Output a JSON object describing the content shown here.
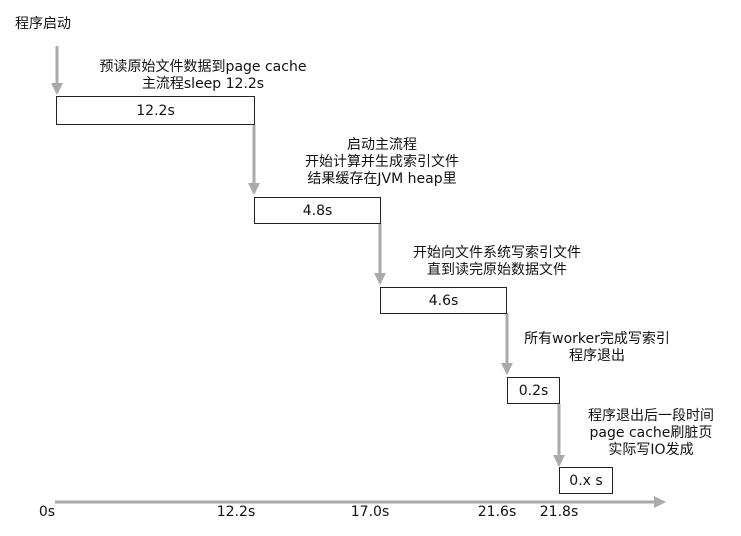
{
  "start_label": "程序启动",
  "steps": [
    {
      "note_lines": [
        "预读原始文件数据到page cache",
        "主流程sleep 12.2s"
      ],
      "duration": "12.2s"
    },
    {
      "note_lines": [
        "启动主流程",
        "开始计算并生成索引文件",
        "结果缓存在JVM heap里"
      ],
      "duration": "4.8s"
    },
    {
      "note_lines": [
        "开始向文件系统写索引文件",
        "直到读完原始数据文件"
      ],
      "duration": "4.6s"
    },
    {
      "note_lines": [
        "所有worker完成写索引",
        "程序退出"
      ],
      "duration": "0.2s"
    },
    {
      "note_lines": [
        "程序退出后一段时间",
        "page cache刷脏页",
        "实际写IO发成"
      ],
      "duration": "0.x s"
    }
  ],
  "axis_ticks": [
    "0s",
    "12.2s",
    "17.0s",
    "21.6s",
    "21.8s"
  ],
  "colors": {
    "arrow": "#aaaaaa",
    "box_border": "#222222",
    "text": "#111111"
  }
}
